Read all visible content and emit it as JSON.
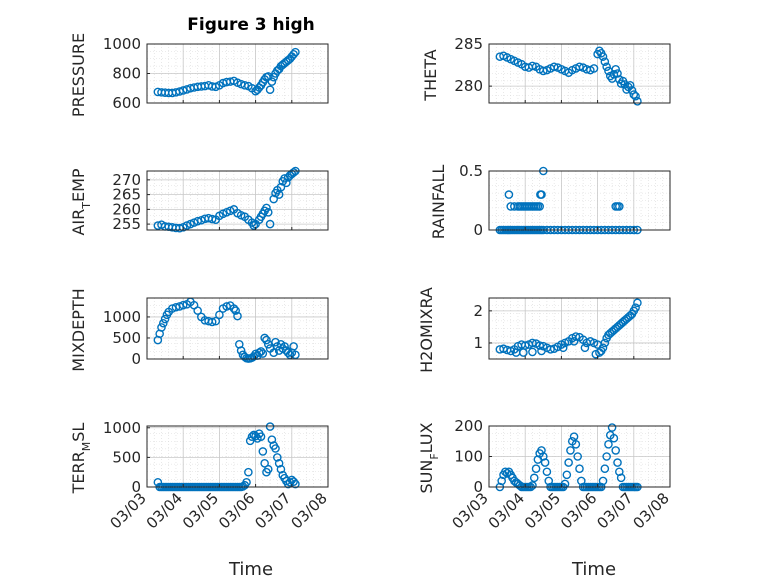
{
  "figure": {
    "title": "Figure 3 high",
    "marker_color": "#0072BD"
  },
  "chart_data": [
    {
      "type": "scatter",
      "ylabel": "PRESSURE",
      "ylim": [
        600,
        1000
      ],
      "yticks": [
        600,
        800,
        1000
      ],
      "ytick_labels": [
        "600",
        "800",
        "1000"
      ],
      "grid": "on",
      "x": [
        3.3,
        3.4,
        3.5,
        3.6,
        3.7,
        3.8,
        3.9,
        4.0,
        4.1,
        4.2,
        4.3,
        4.4,
        4.5,
        4.6,
        4.7,
        4.8,
        4.9,
        5.0,
        5.1,
        5.2,
        5.3,
        5.4,
        5.5,
        5.6,
        5.7,
        5.8,
        5.9,
        6.0,
        6.05,
        6.1,
        6.15,
        6.2,
        6.25,
        6.3,
        6.35,
        6.4,
        6.45,
        6.5,
        6.55,
        6.6,
        6.65,
        6.7,
        6.75,
        6.8,
        6.85,
        6.9,
        6.95,
        7.0,
        7.05,
        7.1
      ],
      "y": [
        675,
        672,
        670,
        668,
        668,
        672,
        678,
        685,
        692,
        700,
        705,
        710,
        712,
        715,
        720,
        712,
        710,
        720,
        735,
        742,
        745,
        750,
        738,
        728,
        720,
        715,
        700,
        680,
        690,
        705,
        720,
        740,
        760,
        775,
        780,
        690,
        745,
        775,
        800,
        820,
        830,
        850,
        860,
        870,
        880,
        890,
        900,
        915,
        930,
        945
      ]
    },
    {
      "type": "scatter",
      "ylabel": "THETA",
      "ylim": [
        278,
        285
      ],
      "yticks": [
        280,
        285
      ],
      "ytick_labels": [
        "280",
        "285"
      ],
      "grid": "on",
      "x": [
        3.3,
        3.4,
        3.5,
        3.6,
        3.7,
        3.8,
        3.9,
        4.0,
        4.1,
        4.2,
        4.3,
        4.4,
        4.5,
        4.6,
        4.7,
        4.8,
        4.9,
        5.0,
        5.1,
        5.2,
        5.3,
        5.4,
        5.5,
        5.6,
        5.7,
        5.8,
        5.9,
        6.0,
        6.05,
        6.1,
        6.15,
        6.2,
        6.25,
        6.3,
        6.35,
        6.4,
        6.45,
        6.5,
        6.55,
        6.6,
        6.65,
        6.7,
        6.75,
        6.8,
        6.85,
        6.9,
        6.95,
        7.0,
        7.05,
        7.1
      ],
      "y": [
        283.5,
        283.6,
        283.4,
        283.2,
        283.0,
        282.8,
        282.6,
        282.3,
        282.2,
        282.4,
        282.3,
        282.0,
        281.8,
        281.9,
        282.1,
        282.3,
        282.2,
        282.0,
        281.8,
        281.6,
        281.9,
        282.1,
        282.3,
        282.2,
        282.0,
        281.9,
        282.1,
        283.8,
        284.2,
        283.9,
        283.5,
        282.9,
        282.3,
        281.8,
        281.2,
        280.9,
        281.4,
        282.0,
        281.5,
        280.8,
        280.3,
        280.6,
        280.2,
        279.6,
        279.9,
        280.1,
        279.5,
        279.0,
        278.8,
        278.2
      ]
    },
    {
      "type": "scatter",
      "ylabel": "AIR_TEMP",
      "ylim": [
        253,
        273
      ],
      "yticks": [
        255,
        260,
        265,
        270
      ],
      "ytick_labels": [
        "255",
        "260",
        "265",
        "270"
      ],
      "grid": "on",
      "x": [
        3.3,
        3.4,
        3.5,
        3.6,
        3.7,
        3.8,
        3.9,
        4.0,
        4.1,
        4.2,
        4.3,
        4.4,
        4.5,
        4.6,
        4.7,
        4.8,
        4.9,
        5.0,
        5.1,
        5.2,
        5.3,
        5.4,
        5.5,
        5.6,
        5.7,
        5.8,
        5.9,
        5.95,
        6.0,
        6.1,
        6.15,
        6.2,
        6.25,
        6.3,
        6.35,
        6.4,
        6.5,
        6.55,
        6.6,
        6.65,
        6.7,
        6.75,
        6.8,
        6.85,
        6.9,
        6.95,
        7.0,
        7.05,
        7.1
      ],
      "y": [
        254.5,
        254.8,
        254.2,
        254.1,
        253.9,
        253.7,
        253.6,
        253.9,
        254.5,
        255.0,
        255.5,
        256.0,
        256.3,
        256.8,
        257.0,
        256.7,
        256.5,
        257.8,
        258.5,
        259.0,
        259.5,
        260.0,
        258.7,
        258.0,
        257.5,
        256.5,
        255.5,
        254.5,
        255.0,
        256.5,
        257.5,
        258.5,
        259.5,
        260.5,
        259.0,
        255.0,
        263.5,
        265.5,
        266.5,
        265.0,
        267.5,
        269.5,
        270.5,
        269.0,
        270.8,
        271.5,
        272.0,
        272.5,
        273.0
      ]
    },
    {
      "type": "scatter",
      "ylabel": "RAINFALL",
      "ylim": [
        0,
        0.5
      ],
      "yticks": [
        0,
        0.5
      ],
      "ytick_labels": [
        "0",
        "0.5"
      ],
      "grid": "on",
      "x": [
        3.3,
        3.35,
        3.4,
        3.45,
        3.5,
        3.55,
        3.6,
        3.65,
        3.7,
        3.75,
        3.8,
        3.85,
        3.9,
        3.95,
        4.0,
        4.05,
        4.1,
        4.15,
        4.2,
        4.25,
        4.3,
        4.35,
        4.4,
        4.45,
        4.5,
        4.6,
        4.7,
        4.8,
        4.9,
        5.0,
        5.1,
        5.2,
        5.3,
        5.4,
        5.5,
        5.6,
        5.7,
        5.8,
        5.9,
        6.0,
        6.1,
        6.2,
        6.3,
        6.4,
        6.5,
        6.6,
        6.7,
        6.8,
        6.9,
        7.0,
        7.1,
        3.55,
        3.6,
        3.7,
        3.8,
        3.85,
        3.9,
        3.95,
        4.0,
        4.05,
        4.1,
        4.15,
        4.2,
        4.25,
        4.3,
        4.35,
        4.4,
        4.42,
        4.45,
        4.5,
        6.5,
        6.6,
        6.55
      ],
      "y": [
        0,
        0,
        0,
        0,
        0,
        0,
        0,
        0,
        0,
        0,
        0,
        0,
        0,
        0,
        0,
        0,
        0,
        0,
        0,
        0,
        0,
        0,
        0,
        0,
        0,
        0,
        0,
        0,
        0,
        0,
        0,
        0,
        0,
        0,
        0,
        0,
        0,
        0,
        0,
        0,
        0,
        0,
        0,
        0,
        0,
        0,
        0,
        0,
        0,
        0,
        0,
        0.3,
        0.2,
        0.2,
        0.2,
        0.2,
        0.2,
        0.2,
        0.2,
        0.2,
        0.2,
        0.2,
        0.2,
        0.2,
        0.2,
        0.2,
        0.2,
        0.3,
        0.3,
        0.5,
        0.2,
        0.2,
        0.2
      ]
    },
    {
      "type": "scatter",
      "ylabel": "MIXDEPTH",
      "ylim": [
        0,
        1450
      ],
      "yticks": [
        0,
        500,
        1000
      ],
      "ytick_labels": [
        "0",
        "500",
        "1000"
      ],
      "grid": "on",
      "x": [
        3.3,
        3.35,
        3.4,
        3.45,
        3.5,
        3.55,
        3.6,
        3.7,
        3.8,
        3.9,
        4.0,
        4.1,
        4.2,
        4.3,
        4.4,
        4.5,
        4.6,
        4.7,
        4.8,
        4.9,
        5.0,
        5.1,
        5.2,
        5.3,
        5.4,
        5.45,
        5.5,
        5.55,
        5.6,
        5.65,
        5.7,
        5.75,
        5.8,
        5.85,
        5.9,
        5.95,
        6.0,
        6.05,
        6.1,
        6.15,
        6.2,
        6.25,
        6.3,
        6.35,
        6.4,
        6.5,
        6.55,
        6.6,
        6.65,
        6.7,
        6.75,
        6.8,
        6.85,
        6.9,
        6.95,
        7.0,
        7.05,
        7.1
      ],
      "y": [
        450,
        600,
        750,
        850,
        950,
        1050,
        1120,
        1200,
        1230,
        1250,
        1280,
        1300,
        1360,
        1280,
        1150,
        1000,
        920,
        900,
        880,
        900,
        1050,
        1200,
        1250,
        1270,
        1200,
        1150,
        1020,
        350,
        200,
        100,
        50,
        20,
        10,
        15,
        30,
        60,
        120,
        80,
        150,
        180,
        130,
        500,
        450,
        350,
        250,
        150,
        400,
        300,
        200,
        350,
        250,
        300,
        200,
        150,
        100,
        150,
        300,
        100
      ]
    },
    {
      "type": "scatter",
      "ylabel": "H2OMIXRA",
      "ylim": [
        0.5,
        2.4
      ],
      "yticks": [
        1,
        2
      ],
      "ytick_labels": [
        "1",
        "2"
      ],
      "grid": "on",
      "x": [
        3.3,
        3.4,
        3.5,
        3.6,
        3.7,
        3.8,
        3.9,
        4.0,
        4.1,
        4.2,
        4.3,
        4.4,
        4.5,
        4.6,
        4.7,
        4.8,
        4.9,
        5.0,
        5.1,
        5.2,
        5.3,
        5.4,
        5.5,
        5.6,
        5.7,
        5.8,
        5.9,
        6.0,
        6.05,
        6.1,
        6.15,
        6.2,
        6.25,
        6.3,
        6.35,
        6.4,
        6.45,
        6.5,
        6.55,
        6.6,
        6.65,
        6.7,
        6.75,
        6.8,
        6.85,
        6.9,
        6.95,
        7.0,
        7.05,
        7.1,
        3.75,
        3.95,
        4.2,
        4.45,
        5.05,
        5.35,
        5.65,
        5.95
      ],
      "y": [
        0.8,
        0.82,
        0.78,
        0.75,
        0.8,
        0.9,
        0.95,
        0.92,
        0.95,
        1.0,
        0.98,
        0.92,
        0.9,
        0.85,
        0.8,
        0.82,
        0.88,
        0.95,
        1.0,
        1.05,
        1.15,
        1.2,
        1.18,
        1.1,
        1.0,
        1.05,
        1.0,
        0.95,
        0.7,
        0.75,
        0.85,
        1.0,
        1.15,
        1.25,
        1.3,
        1.35,
        1.4,
        1.45,
        1.5,
        1.55,
        1.6,
        1.65,
        1.7,
        1.75,
        1.8,
        1.85,
        1.9,
        2.0,
        2.1,
        2.25,
        0.7,
        0.7,
        0.72,
        0.75,
        0.85,
        1.05,
        0.85,
        0.65
      ]
    },
    {
      "type": "scatter",
      "ylabel": "TERR_MSL",
      "ylim": [
        0,
        1030
      ],
      "yticks": [
        0,
        500,
        1000
      ],
      "ytick_labels": [
        "0",
        "500",
        "1000"
      ],
      "grid": "on",
      "x": [
        3.3,
        3.35,
        3.4,
        3.45,
        3.5,
        3.55,
        3.6,
        3.65,
        3.7,
        3.75,
        3.8,
        3.85,
        3.9,
        3.95,
        4.0,
        4.05,
        4.1,
        4.15,
        4.2,
        4.25,
        4.3,
        4.35,
        4.4,
        4.45,
        4.5,
        4.55,
        4.6,
        4.65,
        4.7,
        4.75,
        4.8,
        4.85,
        4.9,
        4.95,
        5.0,
        5.05,
        5.1,
        5.15,
        5.2,
        5.25,
        5.3,
        5.35,
        5.4,
        5.45,
        5.5,
        5.55,
        5.6,
        5.65,
        5.7,
        5.75,
        5.8,
        5.85,
        5.9,
        5.95,
        6.0,
        6.05,
        6.1,
        6.15,
        6.2,
        6.25,
        6.3,
        6.35,
        6.4,
        6.45,
        6.5,
        6.55,
        6.6,
        6.65,
        6.7,
        6.75,
        6.8,
        6.85,
        6.9,
        6.95,
        7.0,
        7.05,
        7.1
      ],
      "y": [
        80,
        0,
        0,
        0,
        0,
        0,
        0,
        0,
        0,
        0,
        0,
        0,
        0,
        0,
        0,
        0,
        0,
        0,
        0,
        0,
        0,
        0,
        0,
        0,
        0,
        0,
        0,
        0,
        0,
        0,
        0,
        0,
        0,
        0,
        0,
        0,
        0,
        0,
        0,
        0,
        0,
        0,
        0,
        0,
        0,
        0,
        0,
        10,
        30,
        80,
        250,
        780,
        850,
        880,
        860,
        820,
        900,
        850,
        600,
        400,
        250,
        300,
        1020,
        800,
        700,
        650,
        500,
        400,
        300,
        200,
        150,
        100,
        50,
        80,
        120,
        90,
        50
      ]
    },
    {
      "type": "scatter",
      "ylabel": "SUN_FLUX",
      "ylim": [
        0,
        200
      ],
      "yticks": [
        0,
        100,
        200
      ],
      "ytick_labels": [
        "0",
        "100",
        "200"
      ],
      "grid": "on",
      "x": [
        3.3,
        3.35,
        3.4,
        3.45,
        3.5,
        3.55,
        3.6,
        3.65,
        3.7,
        3.75,
        3.8,
        3.85,
        3.9,
        3.95,
        4.0,
        4.05,
        4.1,
        4.15,
        4.2,
        4.25,
        4.3,
        4.35,
        4.4,
        4.45,
        4.5,
        4.55,
        4.6,
        4.65,
        4.7,
        4.75,
        4.8,
        4.85,
        4.9,
        4.95,
        5.0,
        5.05,
        5.1,
        5.15,
        5.2,
        5.25,
        5.3,
        5.35,
        5.4,
        5.45,
        5.5,
        5.55,
        5.6,
        5.65,
        5.7,
        5.75,
        5.8,
        5.85,
        5.9,
        5.95,
        6.0,
        6.05,
        6.1,
        6.15,
        6.2,
        6.25,
        6.3,
        6.35,
        6.4,
        6.45,
        6.5,
        6.55,
        6.6,
        6.65,
        6.7,
        6.75,
        6.8,
        6.85,
        6.9,
        6.95,
        7.0,
        7.05,
        7.1
      ],
      "y": [
        0,
        20,
        40,
        50,
        45,
        50,
        40,
        30,
        20,
        15,
        10,
        5,
        0,
        0,
        0,
        0,
        0,
        0,
        5,
        30,
        60,
        90,
        110,
        120,
        100,
        80,
        50,
        20,
        0,
        0,
        0,
        0,
        0,
        0,
        0,
        0,
        10,
        40,
        80,
        120,
        150,
        165,
        140,
        100,
        60,
        20,
        0,
        0,
        0,
        0,
        0,
        0,
        0,
        0,
        0,
        0,
        0,
        20,
        60,
        100,
        140,
        170,
        195,
        160,
        120,
        80,
        50,
        30,
        0,
        0,
        0,
        0,
        0,
        0,
        0,
        0,
        0
      ]
    }
  ],
  "xaxis": {
    "xlim": [
      3,
      8
    ],
    "tick_labels": [
      "03/03",
      "03/04",
      "03/05",
      "03/06",
      "03/07",
      "03/08"
    ],
    "xlabel": "Time"
  }
}
